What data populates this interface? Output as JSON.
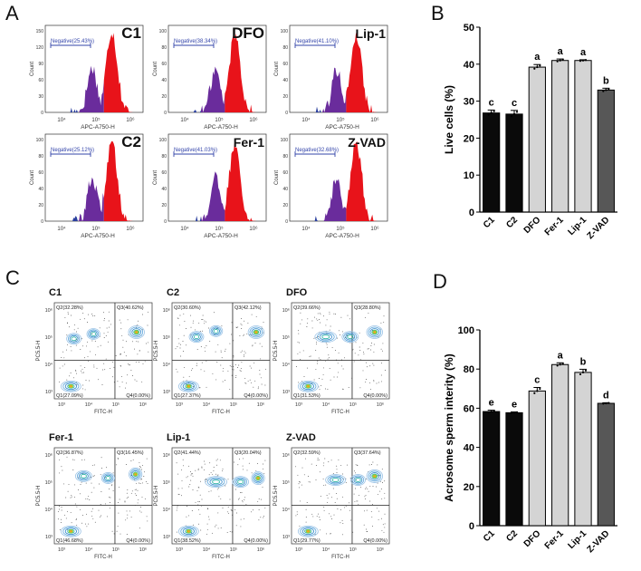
{
  "panels": {
    "a": "A",
    "b": "B",
    "c": "C",
    "d": "D"
  },
  "colors": {
    "hist_red": "#e8131a",
    "hist_purple": "#6a2c9c",
    "hist_blue": "#2a3f9e",
    "gate_line": "#3344aa",
    "bar_black": "#0a0a0a",
    "bar_light": "#d4d4d4",
    "bar_dark": "#575757"
  },
  "histograms": {
    "ylabel": "Count",
    "xlabel": "APC-A750-H",
    "yticks": [
      "150",
      "120",
      "90",
      "60",
      "30",
      "0"
    ],
    "yticks_small": [
      "100",
      "80",
      "60",
      "40",
      "20",
      "0"
    ],
    "xticks": [
      "10⁴",
      "10⁵",
      "10⁶"
    ],
    "items": [
      {
        "name": "C1",
        "gate": "Negative(25.43%)"
      },
      {
        "name": "DFO",
        "gate": "Negative(38.34%)"
      },
      {
        "name": "Lip-1",
        "gate": "Negative(41.10%)"
      },
      {
        "name": "C2",
        "gate": "Negative(25.12%)"
      },
      {
        "name": "Fer-1",
        "gate": "Negative(41.03%)"
      },
      {
        "name": "Z-VAD",
        "gate": "Negative(32.68%)"
      }
    ]
  },
  "contours": {
    "ylabel": "PC5.5-H",
    "xlabel": "FITC-H",
    "ticks": [
      "10³",
      "10⁴",
      "10⁵",
      "10⁶"
    ],
    "items": [
      {
        "name": "C1",
        "q1": "Q1(27.09%)",
        "q2": "Q2(32.28%)",
        "q3": "Q3(40.62%)",
        "q4": "Q4(0.00%)"
      },
      {
        "name": "C2",
        "q1": "Q1(27.37%)",
        "q2": "Q2(30.60%)",
        "q3": "Q3(42.12%)",
        "q4": "Q4(0.00%)"
      },
      {
        "name": "DFO",
        "q1": "Q1(31.53%)",
        "q2": "Q2(39.66%)",
        "q3": "Q3(28.80%)",
        "q4": "Q4(0.00%)"
      },
      {
        "name": "Fer-1",
        "q1": "Q1(46.68%)",
        "q2": "Q2(36.87%)",
        "q3": "Q3(16.45%)",
        "q4": "Q4(0.00%)"
      },
      {
        "name": "Lip-1",
        "q1": "Q1(38.52%)",
        "q2": "Q2(41.44%)",
        "q3": "Q3(20.04%)",
        "q4": "Q4(0.00%)"
      },
      {
        "name": "Z-VAD",
        "q1": "Q1(29.77%)",
        "q2": "Q2(32.59%)",
        "q3": "Q3(37.64%)",
        "q4": "Q4(0.00%)"
      }
    ]
  },
  "chart_data": [
    {
      "type": "bar",
      "categories": [
        "C1",
        "C2",
        "DFO",
        "Fer-1",
        "Lip-1",
        "Z-VAD"
      ],
      "values": [
        26.8,
        26.5,
        39.2,
        41.0,
        41.0,
        33.0
      ],
      "errors": [
        0.8,
        1.0,
        0.7,
        0.4,
        0.2,
        0.5
      ],
      "letters": [
        "c",
        "c",
        "a",
        "a",
        "a",
        "b"
      ],
      "title": "",
      "xlabel": "",
      "ylabel": "Live cells (%)",
      "ylim": [
        0,
        50
      ],
      "yticks": [
        0,
        10,
        20,
        30,
        40,
        50
      ]
    },
    {
      "type": "bar",
      "categories": [
        "C1",
        "C2",
        "DFO",
        "Fer-1",
        "Lip-1",
        "Z-VAD"
      ],
      "values": [
        58.3,
        57.7,
        68.8,
        82.3,
        78.3,
        62.5
      ],
      "errors": [
        0.7,
        0.4,
        1.8,
        0.9,
        1.6,
        0.3
      ],
      "letters": [
        "e",
        "e",
        "c",
        "a",
        "b",
        "d"
      ],
      "title": "",
      "xlabel": "",
      "ylabel": "Acrosome sperm interity (%)",
      "ylim": [
        0,
        100
      ],
      "yticks": [
        0,
        20,
        40,
        60,
        80,
        100
      ]
    }
  ]
}
